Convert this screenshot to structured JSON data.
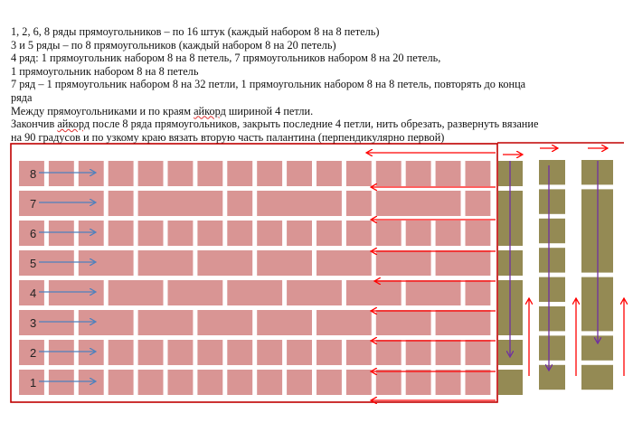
{
  "instructions": [
    {
      "parts": [
        "1, 2, 6, 8 ряды прямоугольников – по 16 штук (каждый набором 8 на 8 петель)"
      ]
    },
    {
      "parts": [
        "3 и 5 ряды – по 8 прямоугольников (каждый набором 8 на 20 петель)"
      ]
    },
    {
      "parts": [
        "4 ряд: 1 прямоугольник набором 8 на 8 петель, 7 прямоугольников набором 8 на 20 петель,"
      ]
    },
    {
      "parts": [
        "1 прямоугольник набором 8 на 8 петель"
      ]
    },
    {
      "parts": [
        "7 ряд – 1 прямоугольник набором 8 на 32 петли, 1 прямоугольник набором 8 на 8 петель, повторять до конца"
      ]
    },
    {
      "parts": [
        "ряда"
      ]
    },
    {
      "parts": [
        "Между прямоугольниками и по краям ",
        "айкорд",
        " шириной 4 петли."
      ]
    },
    {
      "parts": [
        "Закончив ",
        "айкорд",
        " после 8 ряда прямоугольников, закрыть последние 4 петли, нить обрезать, развернуть вязание"
      ]
    },
    {
      "parts": [
        "на 90 градусов и по  узкому краю вязать вторую часть палантина (перпендикулярно первой)"
      ]
    }
  ],
  "diagram": {
    "colors": {
      "rect_first_part": "#d99594",
      "rect_second_part": "#948a54",
      "frame": "#c00000",
      "red_arrows": "#ff0000",
      "row_arrows": "#4f81bd",
      "down_arrows": "#7030a0"
    },
    "rows": [
      {
        "label": "8",
        "blocks": [
          1,
          1,
          1,
          1,
          1,
          1,
          1,
          1,
          1,
          1,
          1,
          1,
          1,
          1,
          1,
          1
        ]
      },
      {
        "label": "7",
        "blocks": [
          3,
          1,
          3,
          1,
          3,
          1,
          3,
          1
        ]
      },
      {
        "label": "6",
        "blocks": [
          1,
          1,
          1,
          1,
          1,
          1,
          1,
          1,
          1,
          1,
          1,
          1,
          1,
          1,
          1,
          1
        ]
      },
      {
        "label": "5",
        "blocks": [
          2,
          2,
          2,
          2,
          2,
          2,
          2,
          2
        ]
      },
      {
        "label": "4",
        "blocks": [
          1,
          2,
          2,
          2,
          2,
          2,
          2,
          2,
          1
        ]
      },
      {
        "label": "3",
        "blocks": [
          2,
          2,
          2,
          2,
          2,
          2,
          2,
          2
        ]
      },
      {
        "label": "2",
        "blocks": [
          1,
          1,
          1,
          1,
          1,
          1,
          1,
          1,
          1,
          1,
          1,
          1,
          1,
          1,
          1,
          1
        ]
      },
      {
        "label": "1",
        "blocks": [
          1,
          1,
          1,
          1,
          1,
          1,
          1,
          1,
          1,
          1,
          1,
          1,
          1,
          1,
          1,
          1
        ]
      }
    ],
    "second_part_columns": [
      {
        "blocks": [
          1,
          2,
          1,
          2,
          1,
          1
        ]
      },
      {
        "blocks": [
          1,
          1,
          1,
          1,
          1,
          1,
          1,
          1
        ]
      },
      {
        "blocks": [
          1,
          3,
          2,
          1,
          1
        ]
      }
    ]
  }
}
